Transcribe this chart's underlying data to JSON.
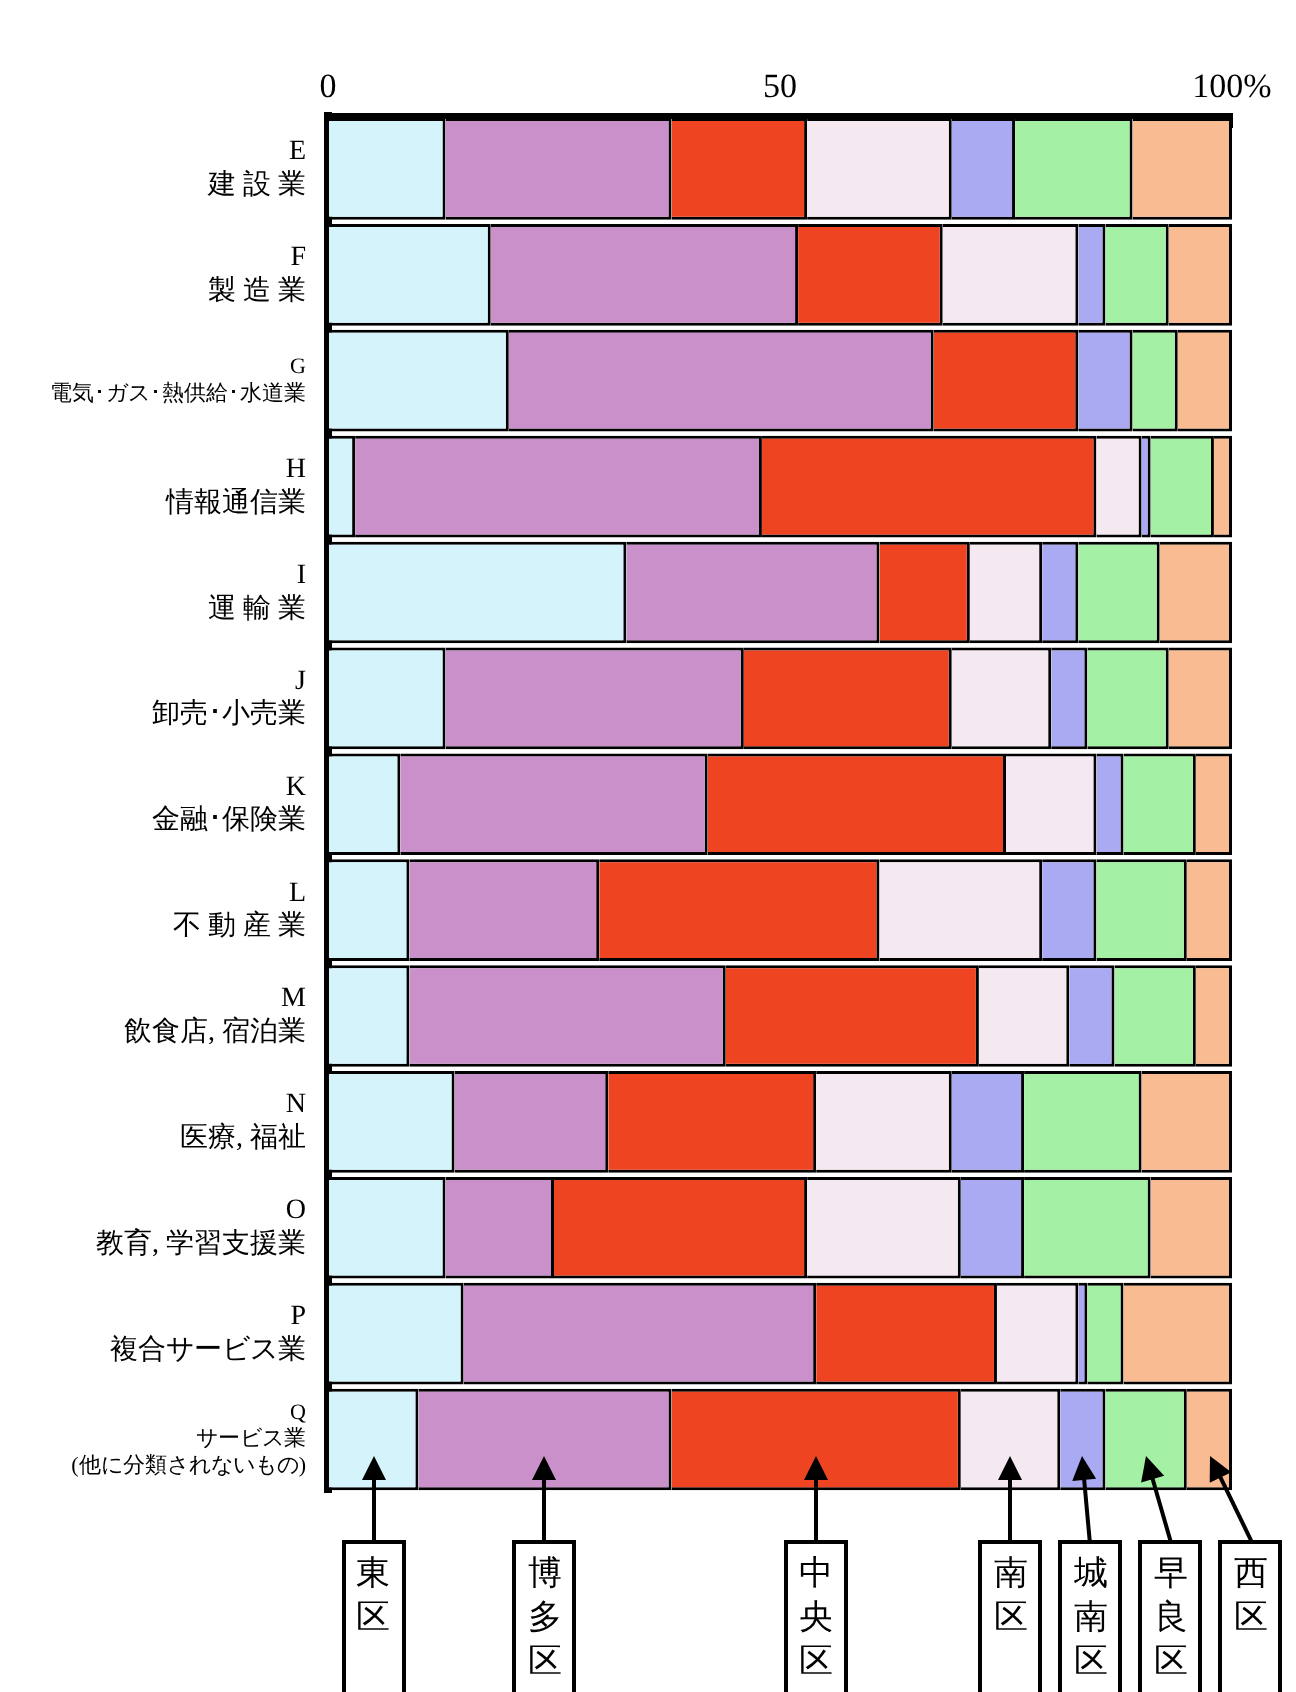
{
  "chart_data": {
    "type": "bar",
    "orientation": "horizontal",
    "stacked": true,
    "categories": [
      "E\n建 設 業",
      "F\n製 造 業",
      "G\n電気･ガス･熱供給･水道業",
      "H\n情報通信業",
      "I\n運 輸 業",
      "J\n卸売･小売業",
      "K\n金融･保険業",
      "L\n不 動 産 業",
      "M\n飲食店, 宿泊業",
      "N\n医療, 福祉",
      "O\n教育, 学習支援業",
      "P\n複合サービス業",
      "Q\nサービス業\n(他に分類されないもの)"
    ],
    "series": [
      {
        "name": "東区",
        "color": "#d4f3fb",
        "values": [
          13,
          18,
          20,
          3,
          33,
          13,
          8,
          9,
          9,
          14,
          13,
          15,
          10
        ]
      },
      {
        "name": "博多区",
        "color": "#c990c9",
        "values": [
          25,
          34,
          47,
          45,
          28,
          33,
          34,
          21,
          35,
          17,
          12,
          39,
          28
        ]
      },
      {
        "name": "中央区",
        "color": "#ee4422",
        "values": [
          15,
          16,
          16,
          37,
          10,
          23,
          33,
          31,
          28,
          23,
          28,
          20,
          32
        ]
      },
      {
        "name": "南区",
        "color": "#f5e9f1",
        "values": [
          16,
          15,
          0,
          5,
          8,
          11,
          10,
          18,
          10,
          15,
          17,
          9,
          11
        ]
      },
      {
        "name": "城南区",
        "color": "#aaaaf2",
        "values": [
          7,
          3,
          6,
          1,
          4,
          4,
          3,
          6,
          5,
          8,
          7,
          1,
          5
        ]
      },
      {
        "name": "早良区",
        "color": "#a4f0a4",
        "values": [
          13,
          7,
          5,
          7,
          9,
          9,
          8,
          10,
          9,
          13,
          14,
          4,
          9
        ]
      },
      {
        "name": "西区",
        "color": "#f8bb92",
        "values": [
          11,
          7,
          6,
          2,
          8,
          7,
          4,
          5,
          4,
          10,
          9,
          12,
          5
        ]
      }
    ],
    "xlim": [
      0,
      100
    ],
    "xticks": [
      0,
      {
        "value": 10,
        "label": null
      },
      {
        "value": 20,
        "label": null
      },
      {
        "value": 30,
        "label": null
      },
      {
        "value": 40,
        "label": null
      },
      50,
      {
        "value": 60,
        "label": null
      },
      {
        "value": 70,
        "label": null
      },
      {
        "value": 80,
        "label": null
      },
      {
        "value": 90,
        "label": null
      },
      {
        "value": 100,
        "label": "100%"
      }
    ]
  }
}
